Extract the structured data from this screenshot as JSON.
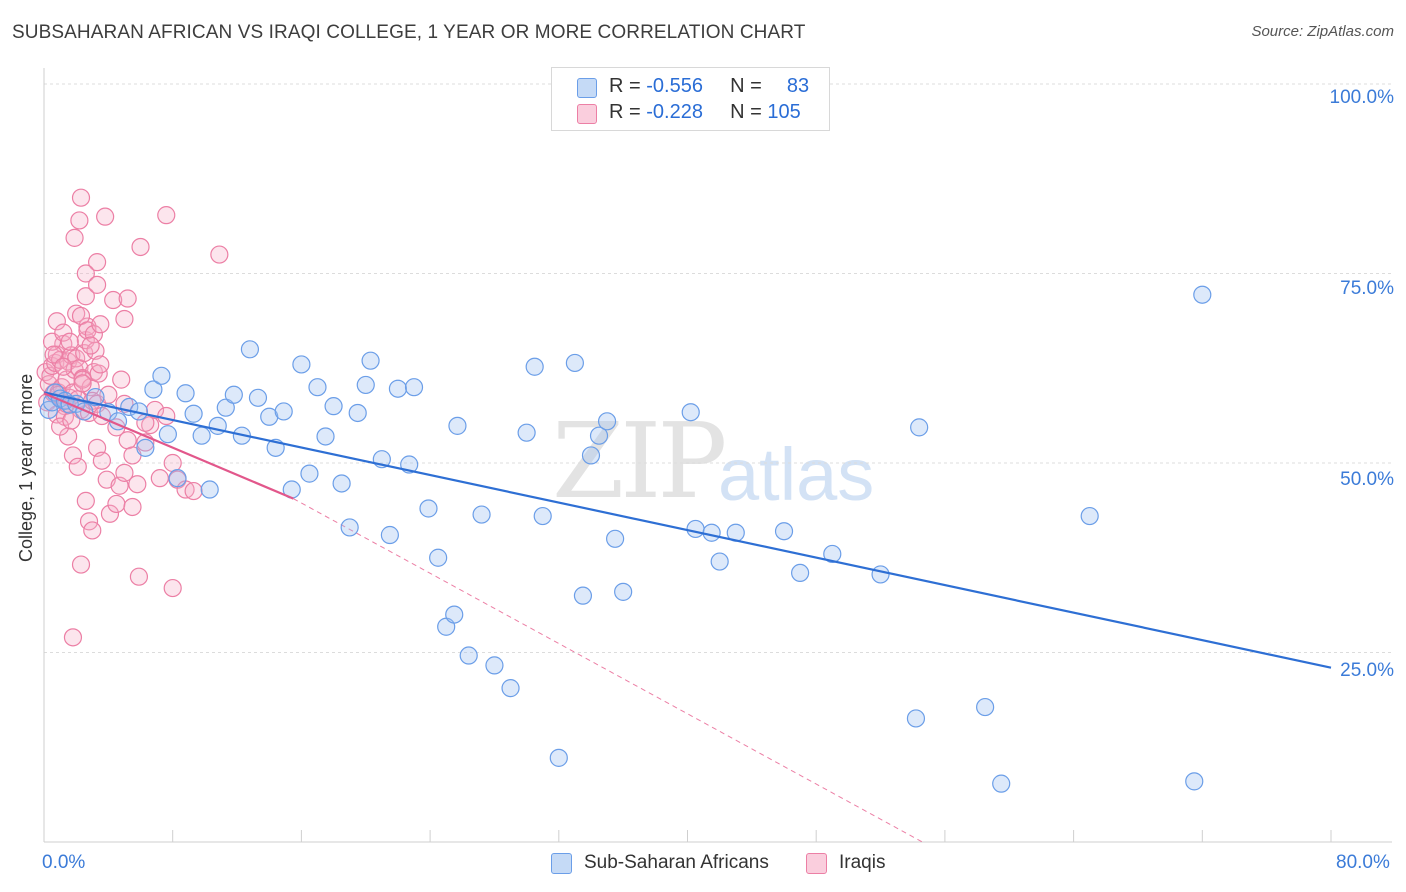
{
  "title": "SUBSAHARAN AFRICAN VS IRAQI COLLEGE, 1 YEAR OR MORE CORRELATION CHART",
  "source": "Source: ZipAtlas.com",
  "watermark": {
    "zip": "ZIP",
    "atlas": "atlas"
  },
  "legend": {
    "blue": {
      "r_label": "R =",
      "r_value": "-0.556",
      "n_label": "N =",
      "n_value": "83"
    },
    "pink": {
      "r_label": "R =",
      "r_value": "-0.228",
      "n_label": "N =",
      "n_value": "105"
    }
  },
  "bottom_legend": {
    "blue": "Sub-Saharan Africans",
    "pink": "Iraqis"
  },
  "axis": {
    "ylabel": "College, 1 year or more",
    "x_min_label": "0.0%",
    "x_max_label": "80.0%",
    "y_ticks": [
      "100.0%",
      "75.0%",
      "50.0%",
      "25.0%"
    ]
  },
  "colors": {
    "blue": "#6b9ee8",
    "blue_fill": "rgba(158,193,240,0.35)",
    "blue_line": "#2e6fd4",
    "pink": "#ec7fa5",
    "pink_fill": "rgba(246,173,199,0.32)",
    "pink_line": "#e2578b"
  },
  "chart_data": {
    "type": "scatter",
    "title": "SUBSAHARAN AFRICAN VS IRAQI COLLEGE, 1 YEAR OR MORE CORRELATION CHART",
    "xlabel": "",
    "ylabel": "College, 1 year or more",
    "xlim": [
      0,
      80
    ],
    "ylim": [
      0,
      100
    ],
    "series": [
      {
        "name": "Sub-Saharan Africans",
        "r": -0.556,
        "n": 83,
        "trend": {
          "x": [
            0,
            80
          ],
          "y": [
            59.3,
            23.0
          ]
        },
        "points": [
          [
            0.3,
            57
          ],
          [
            0.5,
            58
          ],
          [
            0.7,
            59.3
          ],
          [
            1.0,
            58.5
          ],
          [
            1.3,
            58.2
          ],
          [
            1.6,
            57.7
          ],
          [
            2.0,
            57.8
          ],
          [
            2.5,
            56.8
          ],
          [
            3.2,
            58.7
          ],
          [
            4.0,
            56.7
          ],
          [
            4.6,
            55.5
          ],
          [
            5.3,
            57.4
          ],
          [
            5.9,
            56.8
          ],
          [
            6.3,
            52
          ],
          [
            6.8,
            59.7
          ],
          [
            7.3,
            61.5
          ],
          [
            7.7,
            53.8
          ],
          [
            8.3,
            48
          ],
          [
            8.8,
            59.2
          ],
          [
            9.3,
            56.5
          ],
          [
            9.8,
            53.6
          ],
          [
            10.3,
            46.5
          ],
          [
            10.8,
            54.9
          ],
          [
            11.3,
            57.3
          ],
          [
            11.8,
            59
          ],
          [
            12.3,
            53.6
          ],
          [
            12.8,
            65
          ],
          [
            13.3,
            58.6
          ],
          [
            14.0,
            56.1
          ],
          [
            14.4,
            52
          ],
          [
            14.9,
            56.8
          ],
          [
            15.4,
            46.5
          ],
          [
            16.0,
            63
          ],
          [
            16.5,
            48.6
          ],
          [
            17.0,
            60
          ],
          [
            17.5,
            53.5
          ],
          [
            18.0,
            57.5
          ],
          [
            18.5,
            47.3
          ],
          [
            19.0,
            41.5
          ],
          [
            19.5,
            56.6
          ],
          [
            20.0,
            60.3
          ],
          [
            20.3,
            63.5
          ],
          [
            21.0,
            50.5
          ],
          [
            21.5,
            40.5
          ],
          [
            22.0,
            59.8
          ],
          [
            22.7,
            49.8
          ],
          [
            23.0,
            60
          ],
          [
            23.9,
            44
          ],
          [
            24.5,
            37.5
          ],
          [
            25.0,
            28.4
          ],
          [
            25.5,
            30
          ],
          [
            25.7,
            54.9
          ],
          [
            26.4,
            24.6
          ],
          [
            27.2,
            43.2
          ],
          [
            28.0,
            23.3
          ],
          [
            29.0,
            20.3
          ],
          [
            30.0,
            54
          ],
          [
            30.5,
            62.7
          ],
          [
            31.0,
            43
          ],
          [
            32.0,
            11.1
          ],
          [
            33.0,
            63.2
          ],
          [
            33.5,
            32.5
          ],
          [
            34.0,
            51
          ],
          [
            34.5,
            53.6
          ],
          [
            35.0,
            55.5
          ],
          [
            35.5,
            40
          ],
          [
            36.0,
            33
          ],
          [
            40.2,
            56.7
          ],
          [
            40.5,
            41.3
          ],
          [
            41.5,
            40.8
          ],
          [
            42.0,
            37
          ],
          [
            43.0,
            40.8
          ],
          [
            46.0,
            41
          ],
          [
            47.0,
            35.5
          ],
          [
            49.0,
            38
          ],
          [
            52.0,
            35.3
          ],
          [
            54.2,
            16.3
          ],
          [
            54.4,
            54.7
          ],
          [
            58.5,
            17.8
          ],
          [
            59.5,
            7.7
          ],
          [
            65.0,
            43
          ],
          [
            71.5,
            8
          ],
          [
            72.0,
            72.2
          ]
        ]
      },
      {
        "name": "Iraqis",
        "r": -0.228,
        "n": 105,
        "trend": {
          "x": [
            0,
            15.5
          ],
          "y": [
            59.2,
            45.3
          ]
        },
        "trend_extended": {
          "x": [
            15.5,
            54.6
          ],
          "y": [
            45.3,
            0
          ]
        },
        "points": [
          [
            0.1,
            62
          ],
          [
            0.2,
            58
          ],
          [
            0.3,
            60.4
          ],
          [
            0.4,
            61.5
          ],
          [
            0.5,
            62.8
          ],
          [
            0.6,
            59.2
          ],
          [
            0.7,
            63.2
          ],
          [
            0.8,
            64.3
          ],
          [
            0.9,
            59.3
          ],
          [
            1.0,
            63.6
          ],
          [
            1.1,
            60
          ],
          [
            1.2,
            65.7
          ],
          [
            1.3,
            57.5
          ],
          [
            1.4,
            61
          ],
          [
            1.5,
            63.4
          ],
          [
            1.6,
            58.6
          ],
          [
            1.7,
            64.2
          ],
          [
            1.8,
            59.3
          ],
          [
            1.9,
            62.3
          ],
          [
            2.0,
            63.8
          ],
          [
            2.1,
            58.4
          ],
          [
            2.2,
            62.5
          ],
          [
            2.3,
            57
          ],
          [
            2.4,
            61.2
          ],
          [
            2.5,
            64.5
          ],
          [
            2.6,
            66.2
          ],
          [
            2.7,
            68
          ],
          [
            2.8,
            56.6
          ],
          [
            2.9,
            60
          ],
          [
            3.0,
            58.2
          ],
          [
            3.1,
            62
          ],
          [
            3.2,
            64.8
          ],
          [
            3.3,
            57.8
          ],
          [
            3.4,
            61.8
          ],
          [
            0.5,
            66
          ],
          [
            0.8,
            68.7
          ],
          [
            1.2,
            67.2
          ],
          [
            1.6,
            66
          ],
          [
            2.0,
            69.7
          ],
          [
            2.3,
            69.4
          ],
          [
            2.7,
            67.5
          ],
          [
            3.1,
            67
          ],
          [
            3.3,
            76.5
          ],
          [
            2.2,
            82
          ],
          [
            3.8,
            82.5
          ],
          [
            2.3,
            85
          ],
          [
            1.9,
            79.7
          ],
          [
            2.6,
            75
          ],
          [
            2.6,
            72
          ],
          [
            3.3,
            73.5
          ],
          [
            3.5,
            68.3
          ],
          [
            6.0,
            78.5
          ],
          [
            7.6,
            82.7
          ],
          [
            10.9,
            77.5
          ],
          [
            4.3,
            71.5
          ],
          [
            5.2,
            71.7
          ],
          [
            5.0,
            69
          ],
          [
            0.8,
            56.4
          ],
          [
            1.3,
            56.1
          ],
          [
            1.8,
            51
          ],
          [
            2.1,
            49.5
          ],
          [
            2.6,
            45
          ],
          [
            2.8,
            42.3
          ],
          [
            3.0,
            41.1
          ],
          [
            3.3,
            52
          ],
          [
            3.6,
            50.3
          ],
          [
            3.9,
            47.8
          ],
          [
            4.1,
            43.3
          ],
          [
            4.5,
            44.6
          ],
          [
            4.7,
            47
          ],
          [
            5.0,
            48.7
          ],
          [
            5.2,
            53
          ],
          [
            5.5,
            44.2
          ],
          [
            5.8,
            47.2
          ],
          [
            6.3,
            52.7
          ],
          [
            6.6,
            55
          ],
          [
            6.9,
            57
          ],
          [
            7.2,
            48
          ],
          [
            7.6,
            56.2
          ],
          [
            8.0,
            50
          ],
          [
            8.3,
            47.8
          ],
          [
            8.8,
            46.5
          ],
          [
            9.3,
            46.3
          ],
          [
            2.3,
            36.6
          ],
          [
            5.9,
            35
          ],
          [
            8.0,
            33.5
          ],
          [
            1.8,
            27
          ],
          [
            1.5,
            53.5
          ],
          [
            0.9,
            59
          ],
          [
            1.4,
            57.8
          ],
          [
            2.4,
            61
          ],
          [
            2.9,
            65.5
          ],
          [
            3.5,
            63
          ],
          [
            4.0,
            59
          ],
          [
            4.5,
            54.7
          ],
          [
            5.0,
            57.8
          ],
          [
            5.5,
            51
          ],
          [
            6.3,
            55.3
          ],
          [
            3.6,
            56.2
          ],
          [
            4.8,
            61
          ],
          [
            1.0,
            54.8
          ],
          [
            1.7,
            55.6
          ],
          [
            0.6,
            64.3
          ],
          [
            1.2,
            62.7
          ],
          [
            2.4,
            60.5
          ]
        ]
      }
    ]
  }
}
